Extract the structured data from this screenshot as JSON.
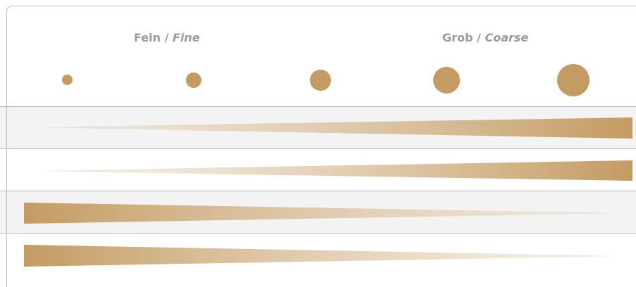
{
  "header": {
    "fine_de": "Fein",
    "separator": "/",
    "fine_en": "Fine",
    "coarse_de": "Grob",
    "coarse_en": "Coarse"
  },
  "dots": [
    {
      "icon": "dot-size-1-icon"
    },
    {
      "icon": "dot-size-2-icon"
    },
    {
      "icon": "dot-size-3-icon"
    },
    {
      "icon": "dot-size-4-icon"
    },
    {
      "icon": "dot-size-5-icon"
    }
  ],
  "colors": {
    "accent": "#c49b62",
    "row_shaded": "#f3f3f3",
    "border": "#b9b9b9",
    "header_text": "#9a9a9a"
  },
  "rows": [
    {
      "direction": "increasing",
      "shaded": true
    },
    {
      "direction": "increasing",
      "shaded": false
    },
    {
      "direction": "decreasing",
      "shaded": true
    },
    {
      "direction": "decreasing",
      "shaded": false
    }
  ]
}
